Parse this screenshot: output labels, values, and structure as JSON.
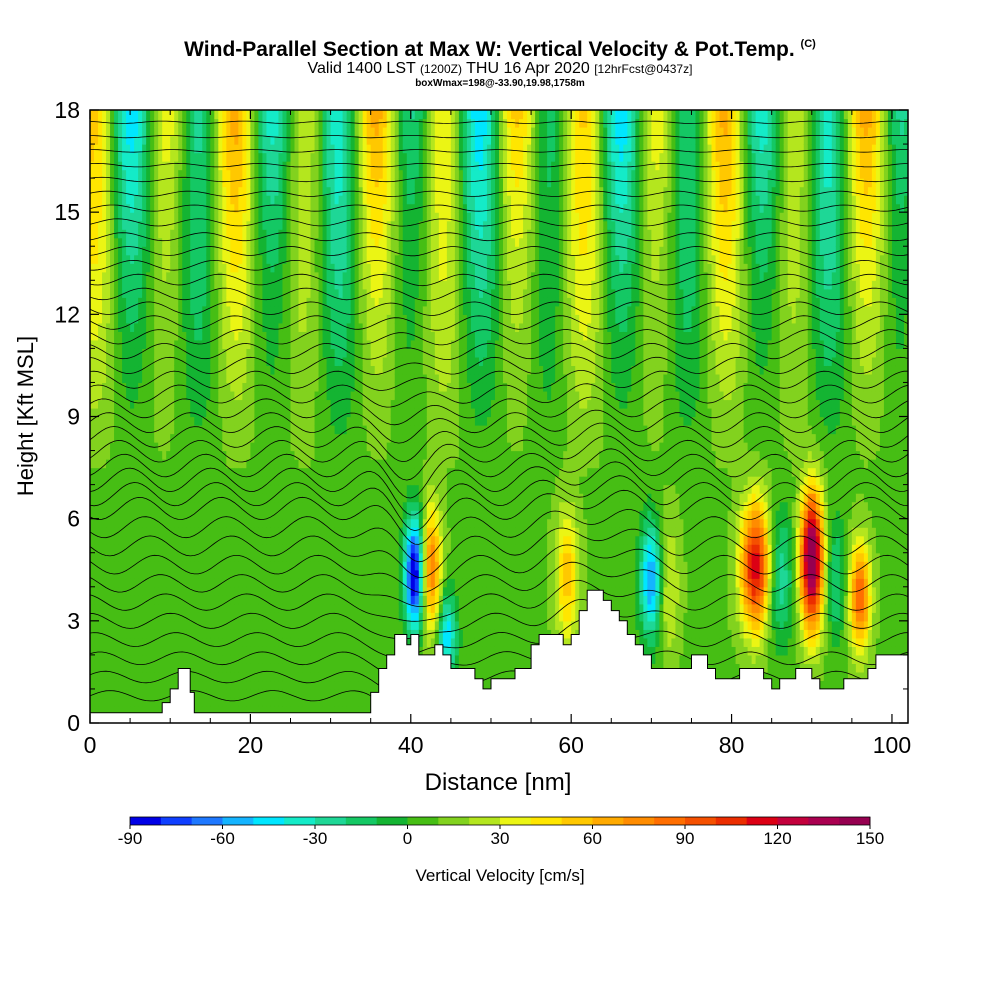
{
  "title": {
    "main": "Wind-Parallel Section at Max W: Vertical Velocity & Pot.Temp.",
    "mark": "(C)",
    "valid_a": "Valid 1400 LST",
    "valid_utc": "(1200Z)",
    "valid_b": "THU 16 Apr 2020",
    "forecast": "[12hrFcst@0437z]",
    "box": "boxWmax=198@-33.90,19.98,1758m"
  },
  "chart_data": {
    "type": "heatmap",
    "xlabel": "Distance [nm]",
    "ylabel": "Height [Kft MSL]",
    "xlim": [
      0,
      102
    ],
    "ylim": [
      0,
      18
    ],
    "xticks": [
      0,
      20,
      40,
      60,
      80,
      100
    ],
    "yticks": [
      0,
      3,
      6,
      9,
      12,
      15,
      18
    ],
    "colorbar": {
      "label": "Vertical Velocity [cm/s]",
      "min": -90,
      "max": 150,
      "ticks": [
        -90,
        -60,
        -30,
        0,
        30,
        60,
        90,
        120,
        150
      ],
      "colors": [
        "#0000e6",
        "#0f3fff",
        "#1e78ff",
        "#14b4ff",
        "#00e6ff",
        "#14ebc8",
        "#1ed796",
        "#14c864",
        "#14b432",
        "#46be14",
        "#82d21e",
        "#b4e61e",
        "#ebf514",
        "#ffe600",
        "#ffc800",
        "#ffaa00",
        "#ff8c00",
        "#ff6e00",
        "#f55000",
        "#eb2d00",
        "#dc0014",
        "#c3003c",
        "#aa0050",
        "#960050"
      ]
    },
    "terrain": [
      [
        0,
        0.3
      ],
      [
        9,
        0.3
      ],
      [
        9,
        0.6
      ],
      [
        10,
        0.6
      ],
      [
        10,
        1.0
      ],
      [
        11,
        1.0
      ],
      [
        11,
        1.6
      ],
      [
        12.5,
        1.6
      ],
      [
        12.5,
        0.9
      ],
      [
        13,
        0.9
      ],
      [
        13,
        0.3
      ],
      [
        35,
        0.3
      ],
      [
        35,
        0.9
      ],
      [
        36,
        0.9
      ],
      [
        36,
        1.6
      ],
      [
        37,
        1.6
      ],
      [
        37,
        2.0
      ],
      [
        38,
        2.0
      ],
      [
        38,
        2.6
      ],
      [
        39.5,
        2.6
      ],
      [
        39.5,
        2.3
      ],
      [
        40,
        2.3
      ],
      [
        40,
        2.6
      ],
      [
        41,
        2.6
      ],
      [
        41,
        2.0
      ],
      [
        43,
        2.0
      ],
      [
        43,
        2.3
      ],
      [
        44,
        2.3
      ],
      [
        44,
        2.0
      ],
      [
        45,
        2.0
      ],
      [
        45,
        1.6
      ],
      [
        48,
        1.6
      ],
      [
        48,
        1.3
      ],
      [
        49,
        1.3
      ],
      [
        49,
        1.0
      ],
      [
        50,
        1.0
      ],
      [
        50,
        1.3
      ],
      [
        53,
        1.3
      ],
      [
        53,
        1.6
      ],
      [
        55,
        1.6
      ],
      [
        55,
        2.3
      ],
      [
        56,
        2.3
      ],
      [
        56,
        2.6
      ],
      [
        59,
        2.6
      ],
      [
        59,
        2.3
      ],
      [
        60,
        2.3
      ],
      [
        60,
        2.6
      ],
      [
        61,
        2.6
      ],
      [
        61,
        3.3
      ],
      [
        62,
        3.3
      ],
      [
        62,
        3.9
      ],
      [
        64,
        3.9
      ],
      [
        64,
        3.6
      ],
      [
        65,
        3.6
      ],
      [
        65,
        3.3
      ],
      [
        66,
        3.3
      ],
      [
        66,
        3.0
      ],
      [
        67,
        3.0
      ],
      [
        67,
        2.6
      ],
      [
        68,
        2.6
      ],
      [
        68,
        2.3
      ],
      [
        69,
        2.3
      ],
      [
        69,
        2.0
      ],
      [
        70,
        2.0
      ],
      [
        70,
        1.6
      ],
      [
        75,
        1.6
      ],
      [
        75,
        2.0
      ],
      [
        77,
        2.0
      ],
      [
        77,
        1.6
      ],
      [
        78,
        1.6
      ],
      [
        78,
        1.3
      ],
      [
        81,
        1.3
      ],
      [
        81,
        1.6
      ],
      [
        84,
        1.6
      ],
      [
        84,
        1.3
      ],
      [
        85,
        1.3
      ],
      [
        85,
        1.0
      ],
      [
        86,
        1.0
      ],
      [
        86,
        1.3
      ],
      [
        88,
        1.3
      ],
      [
        88,
        1.6
      ],
      [
        90,
        1.6
      ],
      [
        90,
        1.3
      ],
      [
        91,
        1.3
      ],
      [
        91,
        1.0
      ],
      [
        94,
        1.0
      ],
      [
        94,
        1.3
      ],
      [
        97,
        1.3
      ],
      [
        97,
        1.6
      ],
      [
        98,
        1.6
      ],
      [
        98,
        2.0
      ],
      [
        102,
        2.0
      ],
      [
        102,
        0
      ]
    ]
  }
}
